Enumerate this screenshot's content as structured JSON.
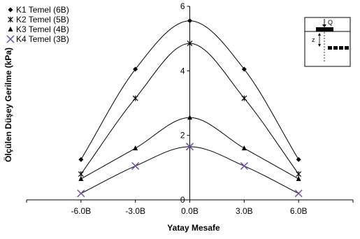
{
  "chart_data": {
    "type": "line",
    "title": "",
    "xlabel": "Yatay Mesafe",
    "ylabel": "Ölçülen Düşey Gerilme (kPa)",
    "categories": [
      "-6.0B",
      "-3.0B",
      "0.0B",
      "3.0B",
      "6.0B"
    ],
    "x": [
      -6,
      -3,
      0,
      3,
      6
    ],
    "xlim": [
      -9,
      9
    ],
    "ylim": [
      0,
      6
    ],
    "yticks": [
      0,
      2,
      4,
      6
    ],
    "grid": false,
    "legend_position": "top-left",
    "smooth": true,
    "series": [
      {
        "name": "K1 Temel (6B)",
        "marker": "diamond",
        "color": "#000000",
        "values": [
          1.25,
          4.05,
          5.55,
          4.05,
          1.25
        ]
      },
      {
        "name": "K2 Temel (5B)",
        "marker": "asterisk",
        "color": "#000000",
        "values": [
          0.8,
          3.15,
          4.85,
          3.15,
          0.8
        ]
      },
      {
        "name": "K3 Temel (4B)",
        "marker": "triangle",
        "color": "#000000",
        "values": [
          0.65,
          1.6,
          2.55,
          1.6,
          0.65
        ]
      },
      {
        "name": "K4 Temel (3B)",
        "marker": "x",
        "color": "#6b4e9b",
        "values": [
          0.2,
          1.05,
          1.65,
          1.05,
          0.2
        ]
      }
    ],
    "inset": {
      "label_q": "Q",
      "label_z": "z"
    }
  }
}
